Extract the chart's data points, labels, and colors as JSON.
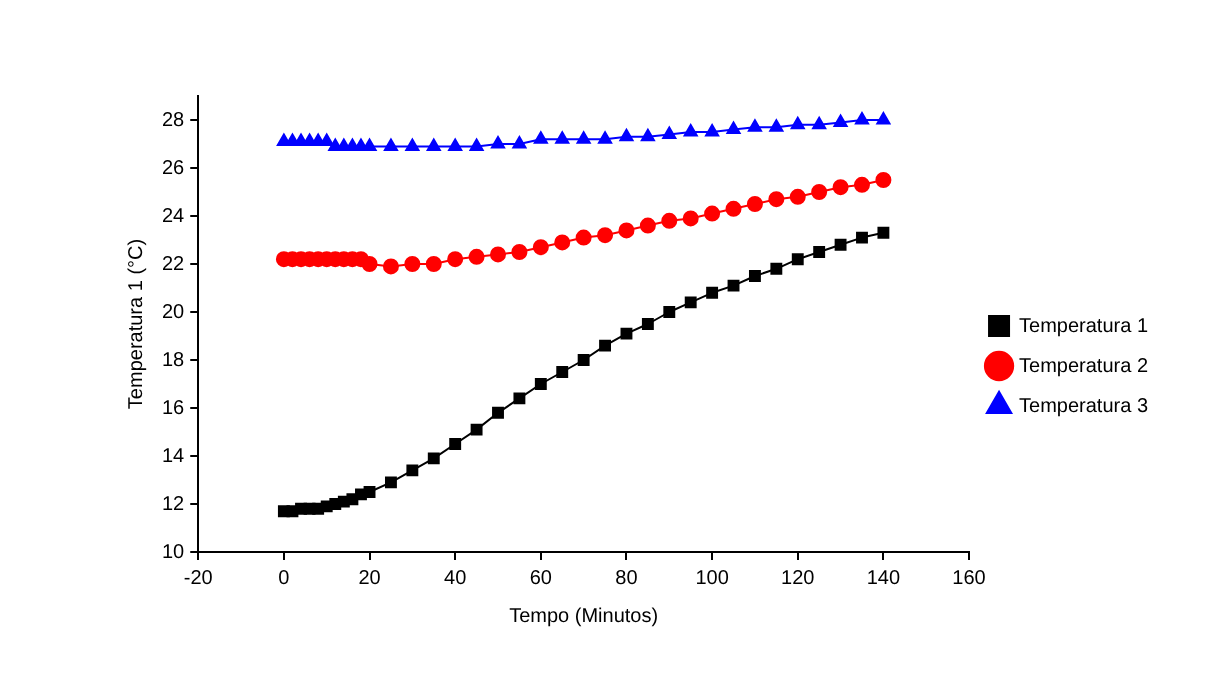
{
  "chart_data": {
    "type": "line",
    "xlabel": "Tempo (Minutos)",
    "ylabel": "Temperatura 1 (°C)",
    "x": [
      0,
      2,
      4,
      6,
      8,
      10,
      12,
      14,
      16,
      18,
      20,
      25,
      30,
      35,
      40,
      45,
      50,
      55,
      60,
      65,
      70,
      75,
      80,
      85,
      90,
      95,
      100,
      105,
      110,
      115,
      120,
      125,
      130,
      135,
      140
    ],
    "series": [
      {
        "name": "Temperatura 1",
        "color": "#000000",
        "marker": "square",
        "values": [
          11.7,
          11.7,
          11.8,
          11.8,
          11.8,
          11.9,
          12.0,
          12.1,
          12.2,
          12.4,
          12.5,
          12.9,
          13.4,
          13.9,
          14.5,
          15.1,
          15.8,
          16.4,
          17.0,
          17.5,
          18.0,
          18.6,
          19.1,
          19.5,
          20.0,
          20.4,
          20.8,
          21.1,
          21.5,
          21.8,
          22.2,
          22.5,
          22.8,
          23.1,
          23.3
        ]
      },
      {
        "name": "Temperatura 2",
        "color": "#ff0000",
        "marker": "circle",
        "values": [
          22.2,
          22.2,
          22.2,
          22.2,
          22.2,
          22.2,
          22.2,
          22.2,
          22.2,
          22.2,
          22.0,
          21.9,
          22.0,
          22.0,
          22.2,
          22.3,
          22.4,
          22.5,
          22.7,
          22.9,
          23.1,
          23.2,
          23.4,
          23.6,
          23.8,
          23.9,
          24.1,
          24.3,
          24.5,
          24.7,
          24.8,
          25.0,
          25.2,
          25.3,
          25.5
        ]
      },
      {
        "name": "Temperatura 3",
        "color": "#0000ff",
        "marker": "triangle",
        "values": [
          27.1,
          27.1,
          27.1,
          27.1,
          27.1,
          27.1,
          26.9,
          26.9,
          26.9,
          26.9,
          26.9,
          26.9,
          26.9,
          26.9,
          26.9,
          26.9,
          27.0,
          27.0,
          27.2,
          27.2,
          27.2,
          27.2,
          27.3,
          27.3,
          27.4,
          27.5,
          27.5,
          27.6,
          27.7,
          27.7,
          27.8,
          27.8,
          27.9,
          28.0,
          28.0
        ]
      }
    ],
    "xlim": [
      -20,
      160
    ],
    "xticks": [
      -20,
      0,
      20,
      40,
      60,
      80,
      100,
      120,
      140,
      160
    ],
    "ylim": [
      10,
      29
    ],
    "yticks": [
      10,
      12,
      14,
      16,
      18,
      20,
      22,
      24,
      26,
      28
    ],
    "legend": "right",
    "grid": false,
    "line_style": "solid"
  }
}
